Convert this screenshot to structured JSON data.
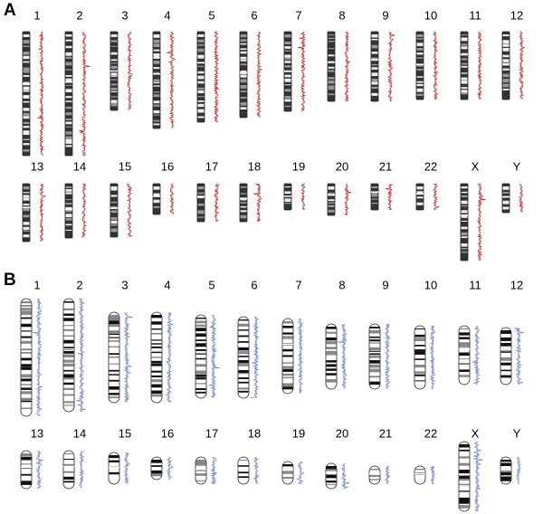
{
  "panels": [
    {
      "label": "A",
      "chromosomes": [
        "1",
        "2",
        "3",
        "4",
        "5",
        "6",
        "7",
        "8",
        "9",
        "10",
        "11",
        "12",
        "13",
        "14",
        "15",
        "16",
        "17",
        "18",
        "19",
        "20",
        "21",
        "22",
        "X",
        "Y"
      ]
    },
    {
      "label": "B",
      "chromosomes": [
        "1",
        "2",
        "3",
        "4",
        "5",
        "6",
        "7",
        "8",
        "9",
        "10",
        "11",
        "12",
        "13",
        "14",
        "15",
        "16",
        "17",
        "18",
        "19",
        "20",
        "21",
        "22",
        "X",
        "Y"
      ]
    }
  ]
}
